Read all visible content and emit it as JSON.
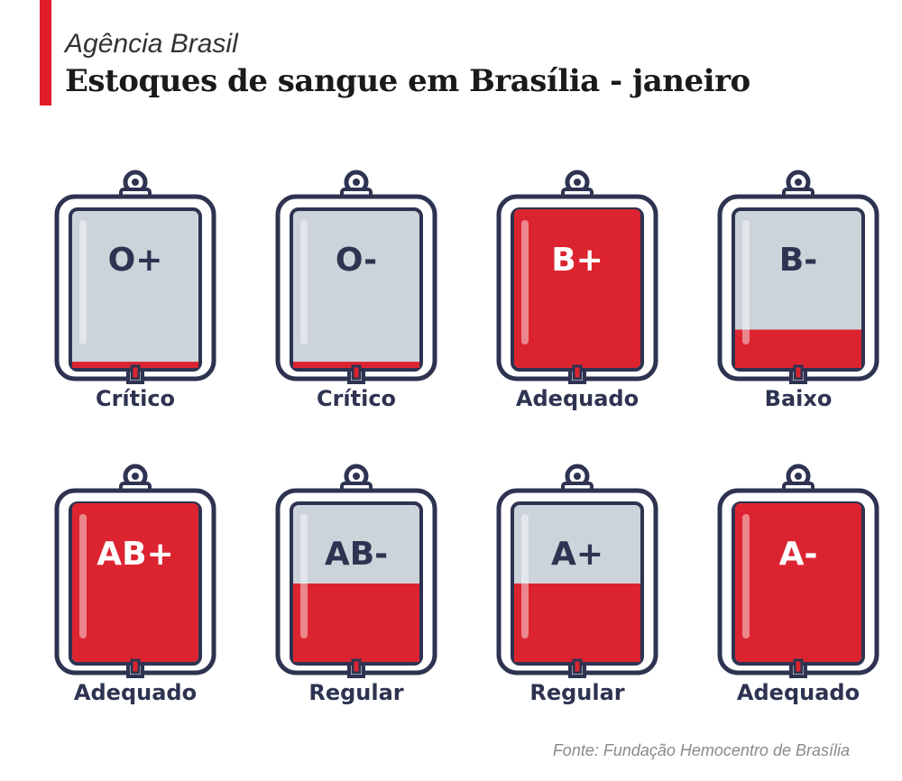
{
  "header": {
    "brand": "Agência Brasil",
    "title": "Estoques de sangue em Brasília - janeiro"
  },
  "bags": [
    {
      "type": "O+",
      "status": "Crítico",
      "fill_level": 0.05
    },
    {
      "type": "O-",
      "status": "Crítico",
      "fill_level": 0.05
    },
    {
      "type": "B+",
      "status": "Adequado",
      "fill_level": 1.0
    },
    {
      "type": "B-",
      "status": "Baixo",
      "fill_level": 0.25
    },
    {
      "type": "AB+",
      "status": "Adequado",
      "fill_level": 1.0
    },
    {
      "type": "AB-",
      "status": "Regular",
      "fill_level": 0.5
    },
    {
      "type": "A+",
      "status": "Regular",
      "fill_level": 0.5
    },
    {
      "type": "A-",
      "status": "Adequado",
      "fill_level": 1.0
    }
  ],
  "source": "Fonte: Fundação Hemocentro de Brasília",
  "colors": {
    "accent": "#e11d2b",
    "blood": "#dc2431",
    "empty": "#cdd3da",
    "outline": "#2d3350",
    "text_dark": "#2d3350",
    "text_light": "#ffffff"
  }
}
